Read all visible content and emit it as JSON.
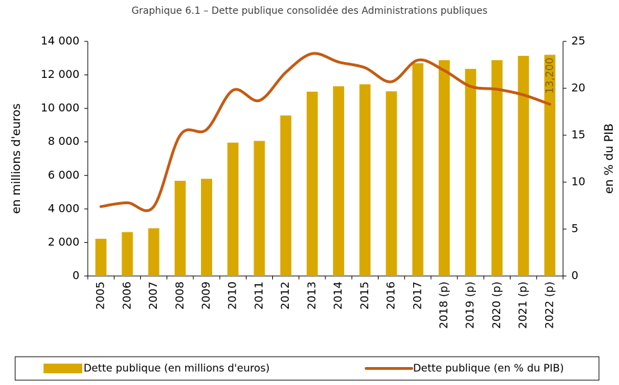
{
  "chart_data": {
    "type": "bar-line",
    "title": "Graphique 6.1 – Dette publique consolidée des Administrations publiques",
    "y_label": "en millions d'euros",
    "y2_label": "en % du PIB",
    "categories": [
      "2005",
      "2006",
      "2007",
      "2008",
      "2009",
      "2010",
      "2011",
      "2012",
      "2013",
      "2014",
      "2015",
      "2016",
      "2017",
      "2018 (p)",
      "2019 (p)",
      "2020 (p)",
      "2021 (p)",
      "2022 (p)"
    ],
    "series": [
      {
        "name": "Dette publique (en millions d'euros)",
        "type": "bar",
        "color": "#d9a800",
        "values": [
          2220,
          2620,
          2850,
          5680,
          5800,
          7960,
          8060,
          9580,
          11000,
          11320,
          11440,
          11020,
          12700,
          12880,
          12360,
          12880,
          13140,
          13200
        ],
        "value_labels": [
          null,
          null,
          null,
          null,
          null,
          null,
          null,
          null,
          null,
          null,
          null,
          null,
          null,
          null,
          null,
          null,
          null,
          "13,200"
        ]
      },
      {
        "name": "Dette publique (en % du PIB)",
        "type": "line",
        "axis": "y2",
        "color": "#c55a11",
        "values": [
          7.4,
          7.8,
          7.4,
          15.0,
          15.6,
          19.8,
          18.7,
          21.7,
          23.7,
          22.8,
          22.2,
          20.7,
          23.0,
          21.9,
          20.2,
          19.9,
          19.3,
          18.3
        ]
      }
    ],
    "ylim": [
      0,
      14000
    ],
    "yticks": [
      0,
      {
        "value": 2000,
        "label": "2 000"
      },
      {
        "value": 4000,
        "label": "4 000"
      },
      {
        "value": 6000,
        "label": "6 000"
      },
      {
        "value": 8000,
        "label": "8 000"
      },
      {
        "value": 10000,
        "label": "10 000"
      },
      {
        "value": 12000,
        "label": "12 000"
      },
      {
        "value": 14000,
        "label": "14 000"
      }
    ],
    "y2lim": [
      0,
      25
    ],
    "y2ticks": [
      0,
      5,
      10,
      15,
      20,
      25
    ],
    "legend": "bottom"
  }
}
